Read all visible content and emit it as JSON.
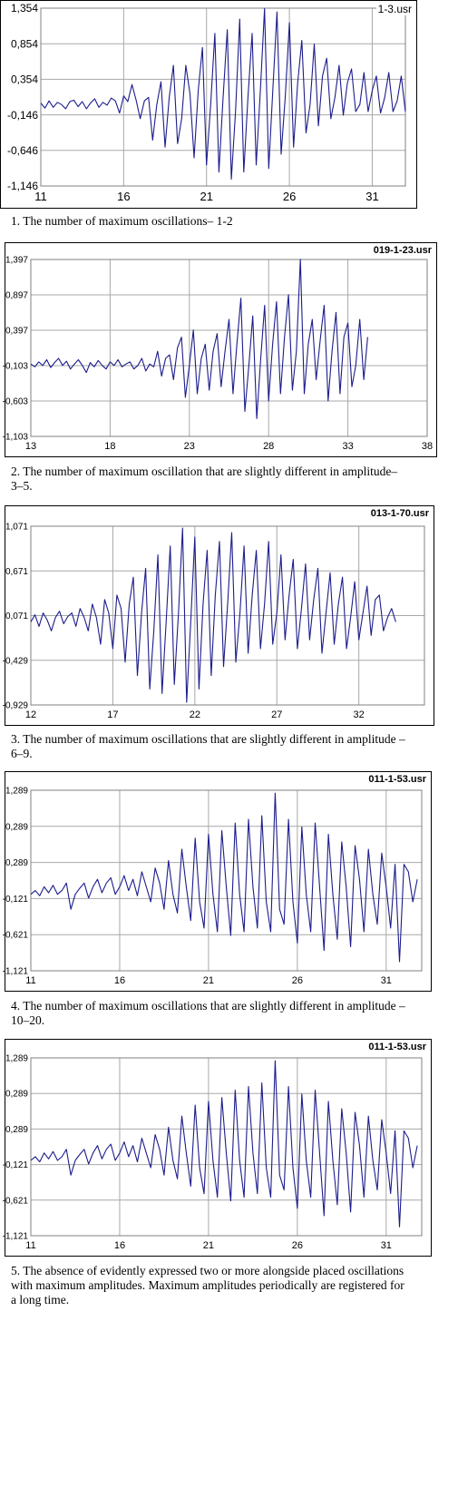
{
  "colors": {
    "series": "#1c1c8c",
    "grid": "#a8a8a8",
    "frame": "#000000"
  },
  "panels": [
    {
      "file": "1-3.usr",
      "caption": "1. The number of maximum oscillations– 1-2",
      "yticks": [
        "1,354",
        "0,854",
        "0,354",
        "-0,146",
        "-0,646",
        "-1,146"
      ],
      "xticks": [
        "11",
        "16",
        "21",
        "26",
        "31"
      ]
    },
    {
      "file": "019-1-23.usr",
      "caption": "2. The number of maximum oscillation that are slightly different in amplitude– 3–5.",
      "yticks": [
        "1,397",
        "0,897",
        "0,397",
        "-0,103",
        "-0,603",
        "-1,103"
      ],
      "xticks": [
        "13",
        "18",
        "23",
        "28",
        "33",
        "38"
      ]
    },
    {
      "file": "013-1-70.usr",
      "caption": "3. The number of maximum oscillations that are slightly different in amplitude – 6–9.",
      "yticks": [
        "1,071",
        "0,671",
        "0,071",
        "-0,429",
        "-0,929"
      ],
      "xticks": [
        "12",
        "17",
        "22",
        "27",
        "32"
      ]
    },
    {
      "file": "011-1-53.usr",
      "caption": "4. The number of maximum oscillations that are slightly different in amplitude – 10–20.",
      "yticks": [
        "1,289",
        "0,289",
        "0,289",
        "-0,121",
        "-0,621",
        "-1,121"
      ],
      "xticks": [
        "11",
        "16",
        "21",
        "26",
        "31"
      ]
    },
    {
      "file": "011-1-53.usr",
      "caption": "5. The absence of evidently expressed two or more alongside placed oscillations with maximum amplitudes. Maximum amplitudes periodically are registered for a long time.",
      "yticks": [
        "1,289",
        "0,289",
        "0,289",
        "-0,121",
        "-0,621",
        "-1,121"
      ],
      "xticks": [
        "11",
        "16",
        "21",
        "26",
        "31"
      ]
    }
  ],
  "chart_data": [
    {
      "type": "line",
      "title": "1-3.usr",
      "ytick_labels": [
        "1,354",
        "0,854",
        "0,354",
        "-0,146",
        "-0,646",
        "-1,146"
      ],
      "xtick_labels": [
        "11",
        "16",
        "21",
        "26",
        "31"
      ],
      "xlim": [
        11,
        33
      ],
      "ylim": [
        -1.146,
        1.354
      ],
      "grid": true,
      "legend": "none",
      "series": [
        {
          "x_start": 11,
          "x_step": 0.25,
          "values": [
            0.02,
            -0.05,
            0.05,
            -0.04,
            0.03,
            0.0,
            -0.06,
            0.04,
            0.06,
            -0.03,
            0.04,
            -0.06,
            0.02,
            0.08,
            -0.04,
            0.03,
            -0.01,
            0.09,
            0.05,
            -0.12,
            0.12,
            0.04,
            0.28,
            0.06,
            -0.2,
            0.05,
            0.1,
            -0.5,
            0.0,
            0.32,
            -0.6,
            0.1,
            0.55,
            -0.55,
            -0.2,
            0.55,
            0.15,
            -0.75,
            0.2,
            0.8,
            -0.85,
            0.0,
            1.0,
            -0.95,
            0.1,
            1.05,
            -1.05,
            -0.1,
            1.2,
            -0.95,
            0.1,
            1.0,
            -0.85,
            0.2,
            1.35,
            -0.9,
            0.2,
            1.3,
            -0.7,
            0.1,
            1.15,
            -0.6,
            0.3,
            0.9,
            -0.4,
            0.0,
            0.85,
            -0.3,
            0.4,
            0.65,
            -0.2,
            0.1,
            0.55,
            -0.15,
            0.3,
            0.5,
            -0.1,
            0.0,
            0.45,
            -0.1,
            0.2,
            0.4,
            -0.12,
            0.1,
            0.45,
            -0.1,
            0.05,
            0.4,
            -0.1
          ]
        }
      ]
    },
    {
      "type": "line",
      "title": "019-1-23.usr",
      "ytick_labels": [
        "1,397",
        "0,897",
        "0,397",
        "-0,103",
        "-0,603",
        "-1,103"
      ],
      "xtick_labels": [
        "13",
        "18",
        "23",
        "28",
        "33",
        "38"
      ],
      "xlim": [
        13,
        38
      ],
      "ylim": [
        -1.103,
        1.397
      ],
      "grid": true,
      "legend": "none",
      "series": [
        {
          "x_start": 13,
          "x_step": 0.25,
          "values": [
            -0.08,
            -0.12,
            -0.05,
            -0.1,
            -0.02,
            -0.13,
            -0.06,
            0.0,
            -0.1,
            -0.04,
            -0.15,
            -0.08,
            -0.02,
            -0.1,
            -0.2,
            -0.06,
            -0.12,
            -0.03,
            -0.1,
            -0.15,
            -0.05,
            -0.1,
            -0.02,
            -0.12,
            -0.08,
            -0.05,
            -0.15,
            -0.1,
            0.0,
            -0.18,
            -0.08,
            -0.12,
            0.1,
            -0.25,
            0.0,
            0.05,
            -0.3,
            0.15,
            0.3,
            -0.55,
            -0.1,
            0.4,
            -0.5,
            0.0,
            0.2,
            -0.45,
            0.1,
            0.35,
            -0.4,
            0.1,
            0.55,
            -0.5,
            0.2,
            0.85,
            -0.75,
            -0.1,
            0.6,
            -0.85,
            0.0,
            0.75,
            -0.6,
            0.2,
            0.8,
            -0.5,
            0.3,
            0.9,
            -0.45,
            0.1,
            1.4,
            -0.5,
            0.2,
            0.55,
            -0.3,
            0.25,
            0.75,
            -0.6,
            0.1,
            0.65,
            -0.5,
            0.3,
            0.5,
            -0.4,
            -0.1,
            0.55,
            -0.3,
            0.3
          ]
        }
      ]
    },
    {
      "type": "line",
      "title": "013-1-70.usr",
      "ytick_labels": [
        "1,071",
        "0,671",
        "0,071",
        "-0,429",
        "-0,929"
      ],
      "xtick_labels": [
        "12",
        "17",
        "22",
        "27",
        "32"
      ],
      "xlim": [
        12,
        36
      ],
      "ylim": [
        -0.929,
        1.071
      ],
      "grid": true,
      "legend": "none",
      "series": [
        {
          "x_start": 12,
          "x_step": 0.25,
          "values": [
            0.0,
            0.08,
            -0.05,
            0.1,
            0.02,
            -0.1,
            0.05,
            0.12,
            -0.02,
            0.06,
            0.1,
            -0.05,
            0.15,
            0.05,
            -0.1,
            0.2,
            0.05,
            -0.25,
            0.25,
            0.1,
            -0.3,
            0.3,
            0.15,
            -0.45,
            0.2,
            0.5,
            -0.6,
            0.1,
            0.6,
            -0.75,
            -0.1,
            0.75,
            -0.8,
            0.0,
            0.85,
            -0.7,
            0.1,
            1.05,
            -0.9,
            0.0,
            0.95,
            -0.75,
            0.2,
            0.8,
            -0.6,
            0.3,
            0.9,
            -0.5,
            0.2,
            1.0,
            -0.45,
            0.1,
            0.85,
            -0.35,
            0.3,
            0.8,
            -0.3,
            0.2,
            0.9,
            -0.25,
            0.1,
            0.75,
            -0.2,
            0.3,
            0.7,
            -0.3,
            0.15,
            0.65,
            -0.2,
            0.25,
            0.6,
            -0.35,
            0.1,
            0.55,
            -0.25,
            0.2,
            0.5,
            -0.3,
            0.05,
            0.45,
            -0.2,
            0.1,
            0.4,
            -0.15,
            0.25,
            0.3,
            -0.1,
            0.05,
            0.15,
            0.0
          ]
        }
      ]
    },
    {
      "type": "line",
      "title": "011-1-53.usr",
      "ytick_labels": [
        "1,289",
        "0,289",
        "0,289",
        "-0,121",
        "-0,621",
        "-1,121"
      ],
      "xtick_labels": [
        "11",
        "16",
        "21",
        "26",
        "31"
      ],
      "xlim": [
        11,
        33
      ],
      "ylim": [
        -1.121,
        1.289
      ],
      "grid": true,
      "legend": "none",
      "series": [
        {
          "x_start": 11,
          "x_step": 0.25,
          "values": [
            -0.1,
            -0.05,
            -0.12,
            0.0,
            -0.08,
            0.02,
            -0.1,
            -0.05,
            0.05,
            -0.3,
            -0.1,
            -0.02,
            0.05,
            -0.15,
            0.0,
            0.1,
            -0.08,
            0.05,
            0.12,
            -0.1,
            0.0,
            0.15,
            -0.05,
            0.1,
            -0.12,
            0.2,
            0.0,
            -0.2,
            0.25,
            0.05,
            -0.3,
            0.35,
            -0.1,
            -0.35,
            0.5,
            0.0,
            -0.45,
            0.65,
            -0.2,
            -0.55,
            0.7,
            -0.1,
            -0.6,
            0.75,
            0.0,
            -0.65,
            0.85,
            -0.1,
            -0.6,
            0.9,
            0.0,
            -0.55,
            0.95,
            -0.2,
            -0.6,
            1.25,
            -0.3,
            -0.5,
            0.9,
            -0.2,
            -0.75,
            0.8,
            -0.1,
            -0.6,
            0.85,
            0.0,
            -0.85,
            0.7,
            -0.1,
            -0.7,
            0.6,
            0.0,
            -0.8,
            0.55,
            0.1,
            -0.6,
            0.5,
            -0.1,
            -0.5,
            0.45,
            0.0,
            -0.55,
            0.3,
            -1.0,
            0.3,
            0.2,
            -0.2,
            0.1
          ]
        }
      ]
    },
    {
      "type": "line",
      "title": "011-1-53.usr",
      "ytick_labels": [
        "1,289",
        "0,289",
        "0,289",
        "-0,121",
        "-0,621",
        "-1,121"
      ],
      "xtick_labels": [
        "11",
        "16",
        "21",
        "26",
        "31"
      ],
      "xlim": [
        11,
        33
      ],
      "ylim": [
        -1.121,
        1.289
      ],
      "grid": true,
      "legend": "none",
      "series": [
        {
          "x_start": 11,
          "x_step": 0.25,
          "values": [
            -0.1,
            -0.05,
            -0.12,
            0.0,
            -0.08,
            0.02,
            -0.1,
            -0.05,
            0.05,
            -0.3,
            -0.1,
            -0.02,
            0.05,
            -0.15,
            0.0,
            0.1,
            -0.08,
            0.05,
            0.12,
            -0.1,
            0.0,
            0.15,
            -0.05,
            0.1,
            -0.12,
            0.2,
            0.0,
            -0.2,
            0.25,
            0.05,
            -0.3,
            0.35,
            -0.1,
            -0.35,
            0.5,
            0.0,
            -0.45,
            0.65,
            -0.2,
            -0.55,
            0.7,
            -0.1,
            -0.6,
            0.75,
            0.0,
            -0.65,
            0.85,
            -0.1,
            -0.6,
            0.9,
            0.0,
            -0.55,
            0.95,
            -0.2,
            -0.6,
            1.25,
            -0.3,
            -0.5,
            0.9,
            -0.2,
            -0.75,
            0.8,
            -0.1,
            -0.6,
            0.85,
            0.0,
            -0.85,
            0.7,
            -0.1,
            -0.7,
            0.6,
            0.0,
            -0.8,
            0.55,
            0.1,
            -0.6,
            0.5,
            -0.1,
            -0.5,
            0.45,
            0.0,
            -0.55,
            0.3,
            -1.0,
            0.3,
            0.2,
            -0.2,
            0.1
          ]
        }
      ]
    }
  ]
}
